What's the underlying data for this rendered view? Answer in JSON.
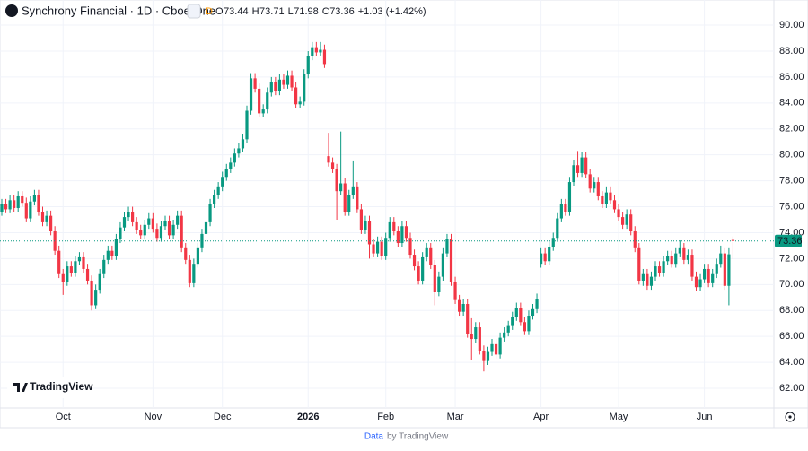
{
  "chart_data": {
    "type": "candlestick",
    "title": "Synchrony Financial · 1D · Cboe One",
    "badge": "D",
    "ohlc_header": [
      {
        "key": "O",
        "text": "73.44"
      },
      {
        "key": "H",
        "text": "73.71"
      },
      {
        "key": "L",
        "text": "71.98"
      },
      {
        "key": "C",
        "text": "73.36"
      }
    ],
    "change_text": "+1.03 (+1.42%)",
    "last_price": {
      "value": 73.36,
      "label": "73.36"
    },
    "up_color": "#089981",
    "down_color": "#f23645",
    "grid": true,
    "ylim": [
      60.48,
      91.94
    ],
    "yticks": [
      {
        "value": 62,
        "label": "62.00"
      },
      {
        "value": 64,
        "label": "64.00"
      },
      {
        "value": 66,
        "label": "66.00"
      },
      {
        "value": 68,
        "label": "68.00"
      },
      {
        "value": 70,
        "label": "70.00"
      },
      {
        "value": 72,
        "label": "72.00"
      },
      {
        "value": 74,
        "label": "74.00"
      },
      {
        "value": 76,
        "label": "76.00"
      },
      {
        "value": 78,
        "label": "78.00"
      },
      {
        "value": 80,
        "label": "80.00"
      },
      {
        "value": 82,
        "label": "82.00"
      },
      {
        "value": 84,
        "label": "84.00"
      },
      {
        "value": 86,
        "label": "86.00"
      },
      {
        "value": 88,
        "label": "88.00"
      },
      {
        "value": 90,
        "label": "90.00"
      }
    ],
    "categories": [
      null,
      null,
      null,
      null,
      null,
      null,
      null,
      null,
      null,
      null,
      null,
      null,
      null,
      null,
      null,
      "Oct",
      null,
      null,
      null,
      null,
      null,
      null,
      null,
      null,
      null,
      null,
      null,
      null,
      null,
      null,
      null,
      null,
      null,
      null,
      null,
      null,
      null,
      "Nov",
      null,
      null,
      null,
      null,
      null,
      null,
      null,
      null,
      null,
      null,
      null,
      null,
      null,
      null,
      null,
      null,
      "Dec",
      null,
      null,
      null,
      null,
      null,
      null,
      null,
      null,
      null,
      null,
      null,
      null,
      null,
      null,
      null,
      null,
      null,
      null,
      null,
      null,
      "2026",
      null,
      null,
      null,
      null,
      null,
      null,
      null,
      null,
      null,
      null,
      null,
      null,
      null,
      null,
      null,
      null,
      null,
      null,
      "Feb",
      null,
      null,
      null,
      null,
      null,
      null,
      null,
      null,
      null,
      null,
      null,
      null,
      null,
      null,
      null,
      null,
      "Mar",
      null,
      null,
      null,
      null,
      null,
      null,
      null,
      null,
      null,
      null,
      null,
      null,
      null,
      null,
      null,
      null,
      null,
      null,
      null,
      null,
      "Apr",
      null,
      null,
      null,
      null,
      null,
      null,
      null,
      null,
      null,
      null,
      null,
      null,
      null,
      null,
      null,
      null,
      null,
      null,
      "May",
      null,
      null,
      null,
      null,
      null,
      null,
      null,
      null,
      null,
      null,
      null,
      null,
      null,
      null,
      null,
      null,
      null,
      null,
      null,
      null,
      "Jun",
      null,
      null,
      null,
      null,
      null,
      null,
      null
    ],
    "values": [
      [
        75.6,
        76.6,
        75.3,
        76.2
      ],
      [
        76.2,
        76.6,
        75.5,
        75.8
      ],
      [
        75.8,
        76.9,
        75.5,
        76.5
      ],
      [
        76.5,
        76.9,
        75.6,
        75.9
      ],
      [
        75.9,
        77.2,
        75.6,
        76.8
      ],
      [
        76.8,
        77.2,
        76.0,
        76.3
      ],
      [
        76.3,
        76.7,
        74.8,
        75.1
      ],
      [
        75.1,
        76.8,
        74.8,
        76.4
      ],
      [
        76.4,
        77.3,
        76.1,
        76.9
      ],
      [
        76.9,
        77.3,
        75.3,
        75.6
      ],
      [
        75.6,
        76.0,
        74.5,
        74.8
      ],
      [
        74.8,
        75.7,
        74.5,
        75.3
      ],
      [
        75.3,
        75.7,
        73.8,
        74.1
      ],
      [
        74.1,
        74.5,
        72.3,
        72.6
      ],
      [
        72.6,
        73.0,
        70.5,
        70.8
      ],
      [
        70.8,
        71.2,
        69.2,
        70.2
      ],
      [
        70.2,
        71.8,
        69.9,
        71.4
      ],
      [
        71.4,
        71.8,
        70.6,
        70.9
      ],
      [
        70.9,
        72.2,
        70.6,
        71.8
      ],
      [
        71.8,
        72.5,
        71.5,
        72.1
      ],
      [
        72.1,
        72.5,
        70.9,
        71.2
      ],
      [
        71.2,
        71.6,
        70.0,
        70.3
      ],
      [
        70.3,
        70.7,
        68.0,
        68.4
      ],
      [
        68.4,
        70.0,
        68.1,
        69.6
      ],
      [
        69.6,
        71.2,
        69.3,
        70.8
      ],
      [
        70.8,
        72.3,
        70.5,
        71.9
      ],
      [
        71.9,
        73.0,
        71.6,
        72.6
      ],
      [
        72.6,
        73.0,
        71.9,
        72.2
      ],
      [
        72.2,
        73.9,
        71.9,
        73.5
      ],
      [
        73.5,
        74.8,
        73.2,
        74.4
      ],
      [
        74.4,
        75.6,
        74.1,
        75.2
      ],
      [
        75.2,
        76.0,
        74.9,
        75.6
      ],
      [
        75.6,
        76.0,
        74.5,
        74.8
      ],
      [
        74.8,
        75.2,
        73.9,
        74.2
      ],
      [
        74.2,
        74.6,
        73.5,
        73.8
      ],
      [
        73.8,
        75.0,
        73.5,
        74.6
      ],
      [
        74.6,
        75.5,
        74.3,
        75.1
      ],
      [
        75.1,
        75.5,
        74.0,
        74.3
      ],
      [
        74.3,
        74.7,
        73.3,
        73.6
      ],
      [
        73.6,
        74.9,
        73.3,
        74.5
      ],
      [
        74.5,
        75.3,
        74.2,
        74.9
      ],
      [
        74.9,
        75.3,
        73.5,
        73.8
      ],
      [
        73.8,
        75.0,
        73.5,
        74.6
      ],
      [
        74.6,
        75.7,
        74.3,
        75.3
      ],
      [
        75.3,
        75.7,
        72.5,
        72.8
      ],
      [
        72.8,
        73.2,
        71.6,
        71.9
      ],
      [
        71.9,
        72.3,
        69.8,
        70.1
      ],
      [
        70.1,
        72.0,
        69.8,
        71.6
      ],
      [
        71.6,
        73.2,
        71.3,
        72.8
      ],
      [
        72.8,
        74.3,
        72.5,
        73.9
      ],
      [
        73.9,
        75.2,
        73.6,
        74.8
      ],
      [
        74.8,
        76.6,
        74.5,
        76.2
      ],
      [
        76.2,
        77.3,
        75.9,
        76.9
      ],
      [
        76.9,
        77.9,
        76.6,
        77.5
      ],
      [
        77.5,
        78.7,
        77.2,
        78.3
      ],
      [
        78.3,
        79.3,
        78.0,
        78.9
      ],
      [
        78.9,
        79.8,
        78.6,
        79.4
      ],
      [
        79.4,
        80.5,
        79.1,
        80.1
      ],
      [
        80.1,
        80.9,
        79.8,
        80.5
      ],
      [
        80.5,
        81.6,
        80.2,
        81.2
      ],
      [
        81.2,
        83.8,
        80.9,
        83.4
      ],
      [
        83.4,
        86.3,
        83.1,
        85.9
      ],
      [
        85.9,
        86.3,
        84.8,
        85.1
      ],
      [
        85.1,
        85.5,
        82.9,
        83.2
      ],
      [
        83.2,
        83.9,
        82.9,
        83.5
      ],
      [
        83.5,
        85.2,
        83.2,
        84.8
      ],
      [
        84.8,
        86.0,
        84.5,
        85.6
      ],
      [
        85.6,
        86.0,
        84.6,
        84.9
      ],
      [
        84.9,
        86.2,
        84.6,
        85.8
      ],
      [
        85.8,
        86.2,
        85.1,
        85.4
      ],
      [
        85.4,
        86.5,
        85.1,
        86.1
      ],
      [
        86.1,
        86.5,
        84.9,
        85.2
      ],
      [
        85.2,
        85.6,
        83.6,
        83.9
      ],
      [
        83.9,
        84.5,
        83.6,
        84.1
      ],
      [
        84.1,
        86.6,
        83.8,
        86.2
      ],
      [
        86.2,
        88.0,
        85.9,
        87.6
      ],
      [
        87.6,
        88.7,
        87.3,
        88.3
      ],
      [
        88.3,
        88.7,
        87.6,
        87.9
      ],
      [
        87.9,
        88.7,
        87.6,
        88.1
      ],
      [
        88.1,
        88.5,
        86.7,
        87.0
      ],
      [
        79.9,
        81.7,
        79.1,
        79.4
      ],
      [
        79.4,
        79.8,
        78.6,
        78.9
      ],
      [
        78.9,
        79.3,
        75.0,
        77.2
      ],
      [
        77.2,
        81.8,
        76.9,
        77.8
      ],
      [
        77.8,
        78.2,
        75.3,
        75.6
      ],
      [
        75.6,
        77.3,
        75.3,
        76.9
      ],
      [
        76.9,
        79.5,
        76.6,
        77.5
      ],
      [
        77.5,
        77.9,
        75.5,
        75.8
      ],
      [
        75.8,
        76.2,
        73.9,
        74.2
      ],
      [
        74.2,
        75.3,
        73.9,
        74.9
      ],
      [
        74.9,
        75.3,
        72.0,
        73.1
      ],
      [
        73.1,
        73.5,
        72.1,
        72.4
      ],
      [
        72.4,
        73.7,
        72.1,
        73.3
      ],
      [
        73.3,
        73.7,
        71.9,
        72.2
      ],
      [
        72.2,
        74.0,
        71.9,
        73.6
      ],
      [
        73.6,
        75.2,
        73.3,
        74.8
      ],
      [
        74.8,
        75.2,
        73.8,
        74.1
      ],
      [
        74.1,
        74.5,
        72.9,
        73.2
      ],
      [
        73.2,
        74.9,
        72.9,
        74.5
      ],
      [
        74.5,
        74.9,
        73.3,
        73.6
      ],
      [
        73.6,
        74.0,
        72.0,
        72.3
      ],
      [
        72.3,
        72.7,
        71.1,
        71.4
      ],
      [
        71.4,
        71.8,
        70.0,
        70.3
      ],
      [
        70.3,
        72.5,
        70.0,
        72.1
      ],
      [
        72.1,
        73.2,
        71.8,
        72.8
      ],
      [
        72.8,
        73.2,
        71.2,
        71.5
      ],
      [
        71.5,
        71.9,
        68.4,
        69.4
      ],
      [
        69.4,
        71.0,
        69.1,
        70.6
      ],
      [
        70.6,
        72.8,
        70.3,
        72.4
      ],
      [
        72.4,
        73.9,
        72.1,
        73.5
      ],
      [
        73.5,
        73.9,
        69.9,
        70.2
      ],
      [
        70.2,
        70.6,
        68.5,
        68.8
      ],
      [
        68.8,
        69.2,
        67.6,
        67.9
      ],
      [
        67.9,
        68.9,
        67.6,
        68.5
      ],
      [
        68.5,
        68.9,
        65.9,
        66.2
      ],
      [
        66.2,
        67.4,
        64.2,
        65.8
      ],
      [
        65.8,
        67.1,
        65.5,
        66.7
      ],
      [
        66.7,
        67.1,
        64.6,
        64.9
      ],
      [
        64.9,
        65.3,
        63.3,
        64.1
      ],
      [
        64.1,
        65.2,
        63.8,
        64.8
      ],
      [
        64.8,
        65.8,
        64.5,
        65.4
      ],
      [
        65.4,
        65.8,
        64.3,
        64.6
      ],
      [
        64.6,
        66.3,
        64.3,
        65.9
      ],
      [
        65.9,
        66.7,
        65.6,
        66.3
      ],
      [
        66.3,
        67.2,
        66.0,
        66.8
      ],
      [
        66.8,
        67.9,
        66.5,
        67.5
      ],
      [
        67.5,
        68.6,
        67.2,
        68.2
      ],
      [
        68.2,
        68.6,
        66.8,
        67.1
      ],
      [
        67.1,
        67.5,
        66.1,
        66.4
      ],
      [
        66.4,
        68.0,
        66.1,
        67.6
      ],
      [
        67.6,
        68.5,
        67.3,
        68.1
      ],
      [
        68.1,
        69.3,
        67.8,
        68.9
      ],
      [
        71.6,
        72.8,
        71.3,
        72.4
      ],
      [
        72.4,
        72.8,
        71.5,
        71.8
      ],
      [
        71.8,
        73.3,
        71.5,
        72.9
      ],
      [
        72.9,
        74.0,
        72.6,
        73.6
      ],
      [
        73.6,
        75.5,
        73.3,
        75.1
      ],
      [
        75.1,
        76.6,
        74.8,
        76.2
      ],
      [
        76.2,
        76.6,
        75.3,
        75.6
      ],
      [
        75.6,
        78.3,
        75.3,
        77.9
      ],
      [
        77.9,
        79.6,
        77.6,
        79.2
      ],
      [
        79.2,
        80.3,
        78.3,
        78.6
      ],
      [
        78.6,
        80.2,
        78.3,
        79.8
      ],
      [
        79.8,
        80.2,
        78.2,
        78.5
      ],
      [
        78.5,
        78.9,
        77.1,
        77.4
      ],
      [
        77.4,
        78.3,
        77.1,
        77.9
      ],
      [
        77.9,
        78.3,
        76.5,
        76.8
      ],
      [
        76.8,
        77.2,
        75.9,
        76.2
      ],
      [
        76.2,
        77.5,
        75.9,
        77.1
      ],
      [
        77.1,
        77.5,
        76.2,
        76.5
      ],
      [
        76.5,
        76.9,
        75.5,
        75.8
      ],
      [
        75.8,
        76.2,
        74.9,
        75.2
      ],
      [
        75.2,
        75.6,
        74.3,
        74.6
      ],
      [
        74.6,
        75.8,
        74.3,
        75.4
      ],
      [
        75.4,
        75.8,
        73.8,
        74.1
      ],
      [
        74.1,
        74.5,
        72.5,
        72.8
      ],
      [
        72.8,
        73.2,
        70.0,
        70.3
      ],
      [
        70.3,
        71.2,
        69.9,
        70.8
      ],
      [
        70.8,
        71.2,
        69.6,
        69.9
      ],
      [
        69.9,
        71.0,
        69.6,
        70.6
      ],
      [
        70.6,
        71.8,
        70.3,
        71.4
      ],
      [
        71.4,
        71.8,
        70.6,
        70.9
      ],
      [
        70.9,
        72.2,
        70.6,
        71.8
      ],
      [
        71.8,
        72.6,
        71.5,
        72.2
      ],
      [
        72.2,
        72.6,
        71.3,
        71.6
      ],
      [
        71.6,
        72.8,
        71.3,
        72.4
      ],
      [
        72.4,
        73.4,
        72.1,
        72.8
      ],
      [
        72.8,
        73.2,
        71.6,
        71.9
      ],
      [
        71.9,
        72.7,
        71.6,
        72.3
      ],
      [
        72.3,
        72.7,
        70.3,
        70.6
      ],
      [
        70.6,
        71.0,
        69.5,
        69.8
      ],
      [
        69.8,
        70.8,
        69.5,
        70.4
      ],
      [
        70.4,
        71.6,
        70.1,
        71.2
      ],
      [
        71.2,
        71.6,
        69.8,
        70.1
      ],
      [
        70.1,
        71.2,
        69.8,
        70.8
      ],
      [
        70.8,
        72.0,
        70.5,
        71.6
      ],
      [
        71.6,
        73.0,
        71.3,
        72.4
      ],
      [
        72.4,
        72.8,
        69.6,
        69.9
      ],
      [
        69.9,
        72.8,
        68.4,
        72.33
      ],
      [
        73.44,
        73.71,
        71.98,
        73.36
      ]
    ],
    "watermark": "TradingView",
    "footer": {
      "link": "Data",
      "text": "by TradingView"
    }
  }
}
